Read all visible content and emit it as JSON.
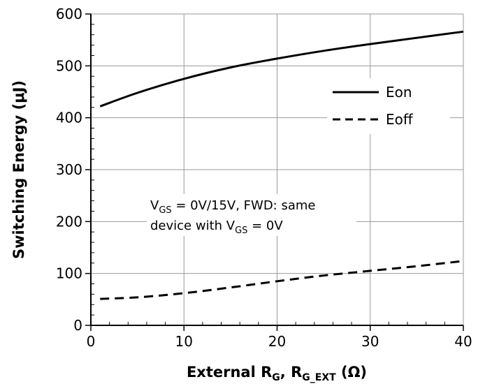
{
  "chart_data": {
    "type": "line",
    "xlabel": {
      "main": "External R",
      "sub1": "G",
      "sep": ", R",
      "sub2": "G_EXT",
      "unit": " (Ω)"
    },
    "ylabel": "Switching Energy (μJ)",
    "xlim": [
      0,
      40
    ],
    "ylim": [
      0,
      600
    ],
    "xticks": [
      0,
      10,
      20,
      30,
      40
    ],
    "yticks": [
      0,
      100,
      200,
      300,
      400,
      500,
      600
    ],
    "xtick_labels": [
      "0",
      "10",
      "20",
      "30",
      "40"
    ],
    "ytick_labels": [
      "0",
      "100",
      "200",
      "300",
      "400",
      "500",
      "600"
    ],
    "grid": true,
    "legend_position": "top-right",
    "series": [
      {
        "name": "Eon",
        "style": "solid",
        "x": [
          1,
          5,
          10,
          15,
          20,
          25,
          30,
          35,
          40
        ],
        "y": [
          422,
          448,
          475,
          497,
          514,
          529,
          542,
          554,
          566
        ]
      },
      {
        "name": "Eoff",
        "style": "dashed",
        "x": [
          1,
          5,
          10,
          15,
          20,
          25,
          30,
          35,
          40
        ],
        "y": [
          51,
          54,
          62,
          73,
          85,
          96,
          105,
          114,
          124
        ]
      }
    ],
    "annotation": {
      "line1": {
        "a": "V",
        "a_sub": "GS",
        "b": " = 0V/15V, FWD: same"
      },
      "line2": {
        "a": "device with V",
        "a_sub": "GS",
        "b": " = 0V"
      }
    }
  }
}
